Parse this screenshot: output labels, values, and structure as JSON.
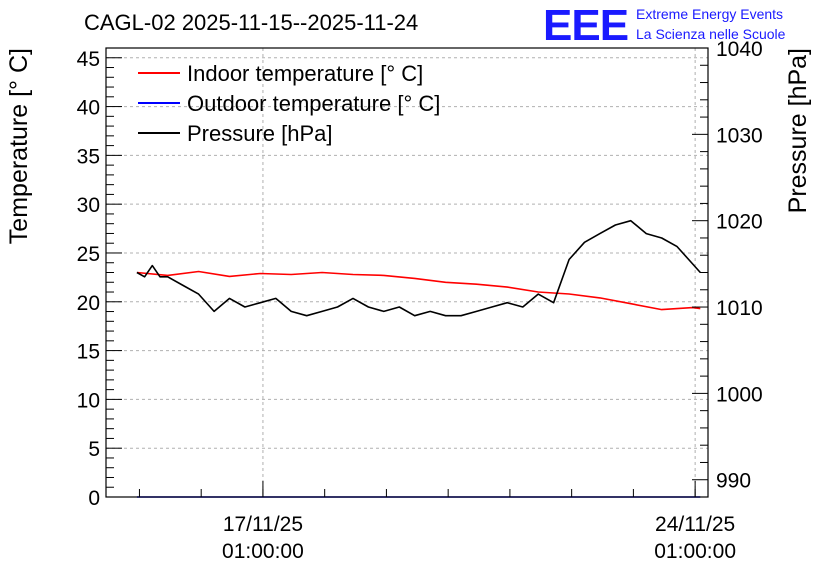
{
  "chart_data": {
    "type": "line",
    "title": "CAGL-02 2025-11-15--2025-11-24",
    "ylabel": "Temperature [° C]",
    "y2label": "Pressure [hPa]",
    "xlabel": "",
    "ylim": [
      0,
      46
    ],
    "y2lim": [
      988,
      1040
    ],
    "xlim": [
      "2025-11-14 12:00",
      "2025-11-24 06:00"
    ],
    "x_ticks": [
      {
        "x": "2025-11-17 01:00",
        "date": "17/11/25",
        "time": "01:00:00"
      },
      {
        "x": "2025-11-24 01:00",
        "date": "24/11/25",
        "time": "01:00:00"
      }
    ],
    "y_ticks": [
      0,
      5,
      10,
      15,
      20,
      25,
      30,
      35,
      40,
      45
    ],
    "y2_ticks": [
      990,
      1000,
      1010,
      1020,
      1030,
      1040
    ],
    "grid": true,
    "legend_position": "top-left",
    "series": [
      {
        "name": "Indoor temperature [° C]",
        "axis": "left",
        "color": "#ff0000",
        "x": [
          "2025-11-15 00:00",
          "2025-11-15 12:00",
          "2025-11-16 00:00",
          "2025-11-16 12:00",
          "2025-11-17 00:00",
          "2025-11-17 12:00",
          "2025-11-18 00:00",
          "2025-11-18 12:00",
          "2025-11-19 00:00",
          "2025-11-19 12:00",
          "2025-11-20 00:00",
          "2025-11-20 12:00",
          "2025-11-21 00:00",
          "2025-11-21 12:00",
          "2025-11-22 00:00",
          "2025-11-22 12:00",
          "2025-11-23 00:00",
          "2025-11-23 12:00",
          "2025-11-24 00:00",
          "2025-11-24 03:00"
        ],
        "values": [
          23.0,
          22.7,
          23.1,
          22.6,
          22.9,
          22.8,
          23.0,
          22.8,
          22.7,
          22.4,
          22.0,
          21.8,
          21.5,
          21.0,
          20.8,
          20.4,
          19.8,
          19.2,
          19.4,
          19.3
        ]
      },
      {
        "name": "Outdoor temperature [° C]",
        "axis": "left",
        "color": "#0000ff",
        "x": [
          "2025-11-15 00:00",
          "2025-11-24 03:00"
        ],
        "values": [
          0,
          0
        ]
      },
      {
        "name": "Pressure [hPa]",
        "axis": "right",
        "color": "#000000",
        "x": [
          "2025-11-15 00:00",
          "2025-11-15 03:00",
          "2025-11-15 06:00",
          "2025-11-15 09:00",
          "2025-11-15 12:00",
          "2025-11-15 18:00",
          "2025-11-16 00:00",
          "2025-11-16 06:00",
          "2025-11-16 12:00",
          "2025-11-16 18:00",
          "2025-11-17 00:00",
          "2025-11-17 06:00",
          "2025-11-17 12:00",
          "2025-11-17 18:00",
          "2025-11-18 00:00",
          "2025-11-18 06:00",
          "2025-11-18 12:00",
          "2025-11-18 18:00",
          "2025-11-19 00:00",
          "2025-11-19 06:00",
          "2025-11-19 12:00",
          "2025-11-19 18:00",
          "2025-11-20 00:00",
          "2025-11-20 06:00",
          "2025-11-20 12:00",
          "2025-11-20 18:00",
          "2025-11-21 00:00",
          "2025-11-21 06:00",
          "2025-11-21 12:00",
          "2025-11-21 18:00",
          "2025-11-22 00:00",
          "2025-11-22 06:00",
          "2025-11-22 12:00",
          "2025-11-22 18:00",
          "2025-11-23 00:00",
          "2025-11-23 06:00",
          "2025-11-23 12:00",
          "2025-11-23 18:00",
          "2025-11-24 00:00",
          "2025-11-24 03:00"
        ],
        "values": [
          1014.0,
          1013.5,
          1014.8,
          1013.5,
          1013.5,
          1012.5,
          1011.5,
          1009.5,
          1011.0,
          1010.0,
          1010.5,
          1011.0,
          1009.5,
          1009.0,
          1009.5,
          1010.0,
          1011.0,
          1010.0,
          1009.5,
          1010.0,
          1009.0,
          1009.5,
          1009.0,
          1009.0,
          1009.5,
          1010.0,
          1010.5,
          1010.0,
          1011.5,
          1010.5,
          1015.5,
          1017.5,
          1018.5,
          1019.5,
          1020.0,
          1018.5,
          1018.0,
          1017.0,
          1015.0,
          1014.0
        ]
      }
    ],
    "logo": {
      "letters": "EEE",
      "line1": "Extreme Energy Events",
      "line2": "La Scienza nelle Scuole"
    }
  }
}
